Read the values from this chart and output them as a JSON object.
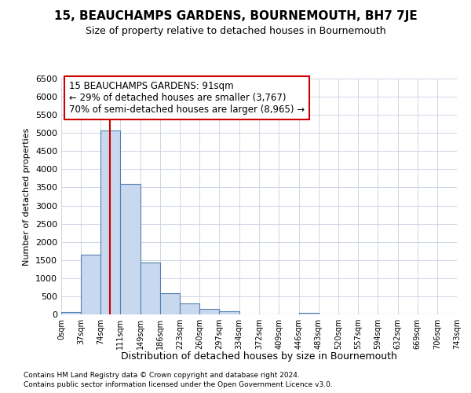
{
  "title": "15, BEAUCHAMPS GARDENS, BOURNEMOUTH, BH7 7JE",
  "subtitle": "Size of property relative to detached houses in Bournemouth",
  "xlabel": "Distribution of detached houses by size in Bournemouth",
  "ylabel": "Number of detached properties",
  "annotation_line1": "15 BEAUCHAMPS GARDENS: 91sqm",
  "annotation_line2": "← 29% of detached houses are smaller (3,767)",
  "annotation_line3": "70% of semi-detached houses are larger (8,965) →",
  "footer1": "Contains HM Land Registry data © Crown copyright and database right 2024.",
  "footer2": "Contains public sector information licensed under the Open Government Licence v3.0.",
  "bar_edges": [
    0,
    37,
    74,
    111,
    149,
    186,
    223,
    260,
    297,
    334,
    372,
    409,
    446,
    483,
    520,
    557,
    594,
    632,
    669,
    706,
    743
  ],
  "bar_heights": [
    55,
    1640,
    5080,
    3600,
    1420,
    580,
    300,
    150,
    85,
    0,
    0,
    0,
    50,
    0,
    0,
    0,
    0,
    0,
    0,
    0
  ],
  "bar_color": "#c8d8ee",
  "bar_edge_color": "#5580b0",
  "vline_x": 91,
  "vline_color": "#cc0000",
  "ylim": [
    0,
    6500
  ],
  "yticks": [
    0,
    500,
    1000,
    1500,
    2000,
    2500,
    3000,
    3500,
    4000,
    4500,
    5000,
    5500,
    6000,
    6500
  ],
  "annotation_box_color": "#cc0000",
  "background_color": "#ffffff",
  "grid_color": "#c8d0e0",
  "tick_labels": [
    "0sqm",
    "37sqm",
    "74sqm",
    "111sqm",
    "149sqm",
    "186sqm",
    "223sqm",
    "260sqm",
    "297sqm",
    "334sqm",
    "372sqm",
    "409sqm",
    "446sqm",
    "483sqm",
    "520sqm",
    "557sqm",
    "594sqm",
    "632sqm",
    "669sqm",
    "706sqm",
    "743sqm"
  ]
}
